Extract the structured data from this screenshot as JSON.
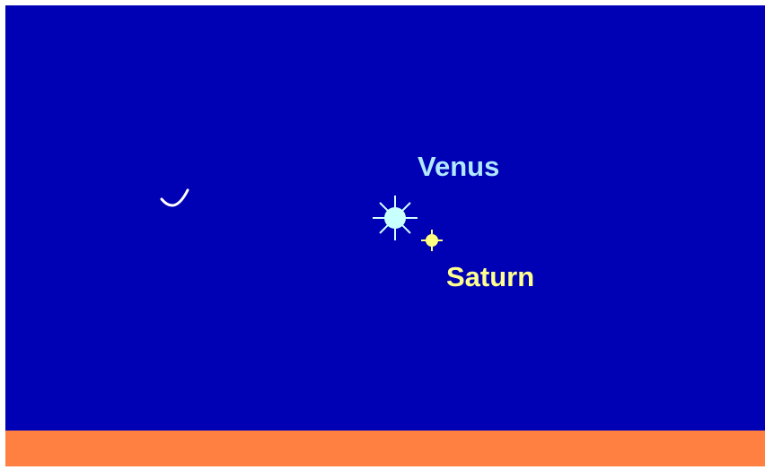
{
  "objects": [
    {
      "label": "Venus"
    },
    {
      "label": "Saturn"
    }
  ]
}
